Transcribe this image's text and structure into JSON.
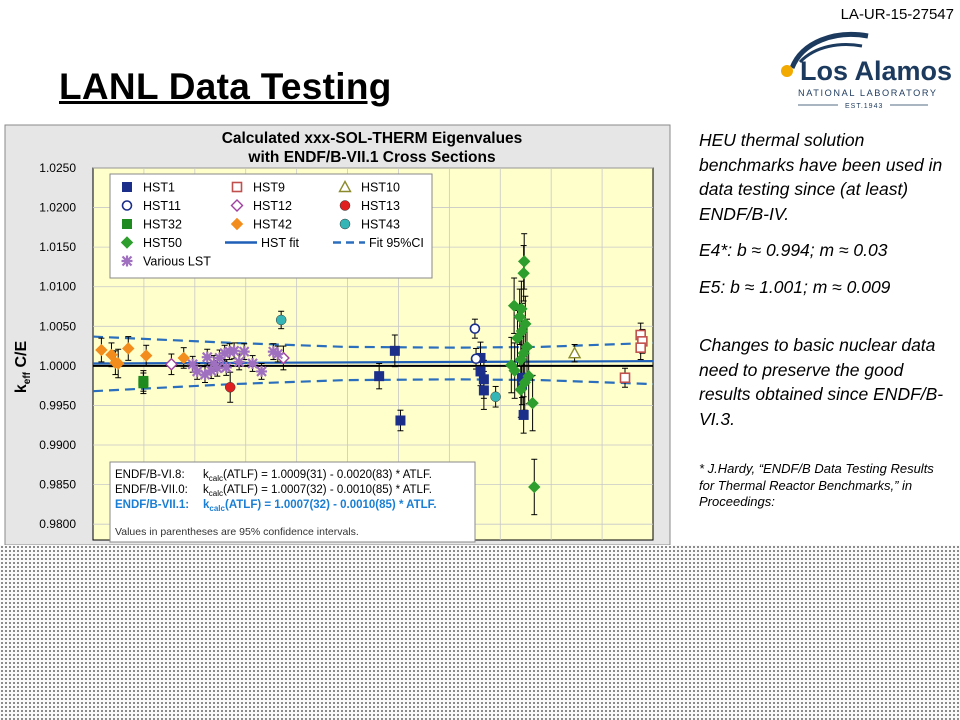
{
  "doc_id": "LA-UR-15-27547",
  "logo": {
    "name": "Los Alamos",
    "sub": "NATIONAL LABORATORY",
    "est": "EST.1943"
  },
  "slide_title": "LANL Data Testing",
  "right_text": {
    "p1": "HEU thermal solution benchmarks have been used in data testing since (at least) ENDF/B-IV.",
    "p2": "E4*:  b ≈ 0.994; m ≈ 0.03",
    "p3": "E5: b ≈ 1.001; m ≈ 0.009",
    "p4": "Changes to basic nuclear data need to preserve the good results obtained since ENDF/B-VI.3.",
    "citation": "* J.Hardy, “ENDF/B Data Testing Results for Thermal Reactor Benchmarks,” in Proceedings:"
  },
  "chart_data": {
    "type": "scatter",
    "title": "Calculated xxx-SOL-THERM Eigenvalues",
    "subtitle": "with ENDF/B-VII.1 Cross Sections",
    "ylabel": "k",
    "ylabel_sub": "eff",
    "ylabel_rest": " C/E",
    "ylim": [
      0.978,
      1.025
    ],
    "yticks": [
      "1.0250",
      "1.0200",
      "1.0150",
      "1.0100",
      "1.0050",
      "1.0000",
      "0.9950",
      "0.9900",
      "0.9850",
      "0.9800"
    ],
    "ytick_values": [
      1.025,
      1.02,
      1.015,
      1.01,
      1.005,
      1.0,
      0.995,
      0.99,
      0.985,
      0.98
    ],
    "xlim": [
      0,
      1
    ],
    "grid": true,
    "colors": {
      "plot_bg": "#ffffcc",
      "navy": "#1a2e8a",
      "fit": "#1f5fb8",
      "ci": "#2a6ebd",
      "hst9": "#c0504d",
      "hst10": "#8b8b2e",
      "hst12": "#a040a0",
      "hst13": "#e02020",
      "hst32": "#1f8a1f",
      "hst42": "#f28c1c",
      "hst43": "#35b5b5",
      "hst50": "#2e9e2e",
      "lst": "#a070c0",
      "atlf3": "#1a7fd4"
    },
    "legend": {
      "placement": "top-left",
      "entries": [
        {
          "label": "HST1",
          "marker": "square-filled",
          "color": "#1a2e8a"
        },
        {
          "label": "HST9",
          "marker": "square-open",
          "color": "#c0504d"
        },
        {
          "label": "HST10",
          "marker": "triangle-open",
          "color": "#8b8b2e"
        },
        {
          "label": "HST11",
          "marker": "circle-open",
          "color": "#1a2e8a"
        },
        {
          "label": "HST12",
          "marker": "diamond-open",
          "color": "#a040a0"
        },
        {
          "label": "HST13",
          "marker": "circle-filled",
          "color": "#e02020"
        },
        {
          "label": "HST32",
          "marker": "square-filled",
          "color": "#1f8a1f"
        },
        {
          "label": "HST42",
          "marker": "diamond-filled",
          "color": "#f28c1c"
        },
        {
          "label": "HST43",
          "marker": "circle-filled",
          "color": "#35b5b5"
        },
        {
          "label": "HST50",
          "marker": "diamond-filled",
          "color": "#2e9e2e"
        },
        {
          "label": "HST fit",
          "marker": "line",
          "color": "#1f5fb8"
        },
        {
          "label": "Fit 95%CI",
          "marker": "dashed",
          "color": "#2a6ebd"
        },
        {
          "label": "Various LST",
          "marker": "asterisk",
          "color": "#a070c0"
        }
      ]
    },
    "fit_line": [
      [
        0.0,
        1.0003
      ],
      [
        1.0,
        1.0006
      ]
    ],
    "ci_upper": [
      [
        0.0,
        1.0037
      ],
      [
        0.25,
        1.0029
      ],
      [
        0.45,
        1.0024
      ],
      [
        0.65,
        1.0023
      ],
      [
        0.8,
        1.0024
      ],
      [
        1.0,
        1.0029
      ]
    ],
    "ci_lower": [
      [
        0.0,
        0.9968
      ],
      [
        0.25,
        0.9977
      ],
      [
        0.45,
        0.9982
      ],
      [
        0.65,
        0.9983
      ],
      [
        0.8,
        0.9982
      ],
      [
        1.0,
        0.9977
      ]
    ],
    "series": [
      {
        "name": "HST1",
        "marker": "square-filled",
        "color": "#1a2e8a",
        "points": [
          [
            0.539,
            1.0019,
            0.002
          ],
          [
            0.511,
            0.9987,
            0.0016
          ],
          [
            0.549,
            0.9931,
            0.0013
          ],
          [
            0.692,
            0.9993,
            0.0018
          ],
          [
            0.692,
            1.001,
            0.002
          ],
          [
            0.698,
            0.9983,
            0.0024
          ],
          [
            0.698,
            0.9969,
            0.0024
          ],
          [
            0.766,
            0.9976,
            0.0025
          ],
          [
            0.769,
            0.9938,
            0.0023
          ],
          [
            0.766,
            0.9985,
            0.0025
          ]
        ]
      },
      {
        "name": "HST9",
        "marker": "square-open",
        "color": "#c0504d",
        "points": [
          [
            0.95,
            0.9985,
            0.0012
          ],
          [
            0.978,
            1.0039,
            0.0015
          ],
          [
            0.981,
            1.0031,
            0.0015
          ],
          [
            0.978,
            1.0023,
            0.0015
          ]
        ]
      },
      {
        "name": "HST10",
        "marker": "triangle-open",
        "color": "#8b8b2e",
        "points": [
          [
            0.86,
            1.0016,
            0.0011
          ]
        ]
      },
      {
        "name": "HST11",
        "marker": "circle-open",
        "color": "#1a2e8a",
        "points": [
          [
            0.684,
            1.0009,
            0.0013
          ],
          [
            0.682,
            1.0047,
            0.0012
          ]
        ]
      },
      {
        "name": "HST12",
        "marker": "diamond-open",
        "color": "#a040a0",
        "points": [
          [
            0.34,
            1.001,
            0.0015
          ],
          [
            0.14,
            1.0002,
            0.0013
          ]
        ]
      },
      {
        "name": "HST13",
        "marker": "circle-filled",
        "color": "#e02020",
        "points": [
          [
            0.245,
            0.9973,
            0.0019
          ]
        ]
      },
      {
        "name": "HST32",
        "marker": "square-filled",
        "color": "#1f8a1f",
        "points": [
          [
            0.09,
            0.9978,
            0.0013
          ],
          [
            0.09,
            0.9981,
            0.0013
          ]
        ]
      },
      {
        "name": "HST42",
        "marker": "diamond-filled",
        "color": "#f28c1c",
        "points": [
          [
            0.015,
            1.002,
            0.0015
          ],
          [
            0.033,
            1.0014,
            0.0015
          ],
          [
            0.04,
            1.0004,
            0.0015
          ],
          [
            0.045,
            1.0003,
            0.0018
          ],
          [
            0.063,
            1.0022,
            0.0015
          ],
          [
            0.095,
            1.0013,
            0.0013
          ],
          [
            0.162,
            1.001,
            0.0013
          ]
        ]
      },
      {
        "name": "HST43",
        "marker": "circle-filled",
        "color": "#35b5b5",
        "points": [
          [
            0.336,
            1.0058,
            0.0011
          ],
          [
            0.719,
            0.9961,
            0.0013
          ]
        ]
      },
      {
        "name": "HST50",
        "marker": "diamond-filled",
        "color": "#2e9e2e",
        "points": [
          [
            0.77,
            1.0132,
            0.0035
          ],
          [
            0.769,
            1.0117,
            0.0035
          ],
          [
            0.752,
            1.0076,
            0.0035
          ],
          [
            0.765,
            1.0072,
            0.0035
          ],
          [
            0.762,
            1.0062,
            0.0035
          ],
          [
            0.772,
            1.0053,
            0.0035
          ],
          [
            0.766,
            1.0044,
            0.0035
          ],
          [
            0.758,
            1.0035,
            0.0035
          ],
          [
            0.775,
            1.0024,
            0.0035
          ],
          [
            0.769,
            1.0016,
            0.0035
          ],
          [
            0.764,
            1.0008,
            0.0035
          ],
          [
            0.747,
            1.0001,
            0.0035
          ],
          [
            0.753,
            0.9994,
            0.0035
          ],
          [
            0.778,
            0.9987,
            0.0035
          ],
          [
            0.771,
            0.9979,
            0.0035
          ],
          [
            0.764,
            0.997,
            0.0035
          ],
          [
            0.785,
            0.9953,
            0.0035
          ],
          [
            0.788,
            0.9847,
            0.0035
          ]
        ]
      },
      {
        "name": "Various LST",
        "marker": "asterisk",
        "color": "#a070c0",
        "points": [
          [
            0.178,
            1.0002,
            0.001
          ],
          [
            0.186,
            0.9993,
            0.001
          ],
          [
            0.2,
            0.9989,
            0.001
          ],
          [
            0.211,
            0.9994,
            0.001
          ],
          [
            0.216,
            1.0003,
            0.001
          ],
          [
            0.222,
            0.9997,
            0.001
          ],
          [
            0.226,
            1.001,
            0.001
          ],
          [
            0.235,
            1.0016,
            0.001
          ],
          [
            0.238,
            0.9998,
            0.001
          ],
          [
            0.244,
            1.0018,
            0.001
          ],
          [
            0.252,
            1.0019,
            0.001
          ],
          [
            0.261,
            1.0005,
            0.001
          ],
          [
            0.27,
            1.0018,
            0.001
          ],
          [
            0.285,
            1.0003,
            0.001
          ],
          [
            0.301,
            0.9993,
            0.001
          ],
          [
            0.322,
            1.0018,
            0.001
          ],
          [
            0.33,
            1.0015,
            0.001
          ],
          [
            0.204,
            1.0011,
            0.001
          ]
        ]
      }
    ],
    "atlf_box": {
      "lines": [
        {
          "lib": "ENDF/B-VI.8:",
          "pre": "k",
          "sub": "calc",
          "eq": "(ATLF) = 1.0009(31) - 0.0020(83) * ATLF.",
          "color": "#000000",
          "bold": false
        },
        {
          "lib": "ENDF/B-VII.0:",
          "pre": "k",
          "sub": "calc",
          "eq": "(ATLF) = 1.0007(32) - 0.0010(85) * ATLF.",
          "color": "#000000",
          "bold": false
        },
        {
          "lib": "ENDF/B-VII.1:",
          "pre": "k",
          "sub": "calc",
          "eq": "(ATLF) = 1.0007(32) - 0.0010(85) * ATLF.",
          "color": "#1a7fd4",
          "bold": true
        }
      ],
      "note": "Values in parentheses are 95% confidence intervals."
    }
  }
}
